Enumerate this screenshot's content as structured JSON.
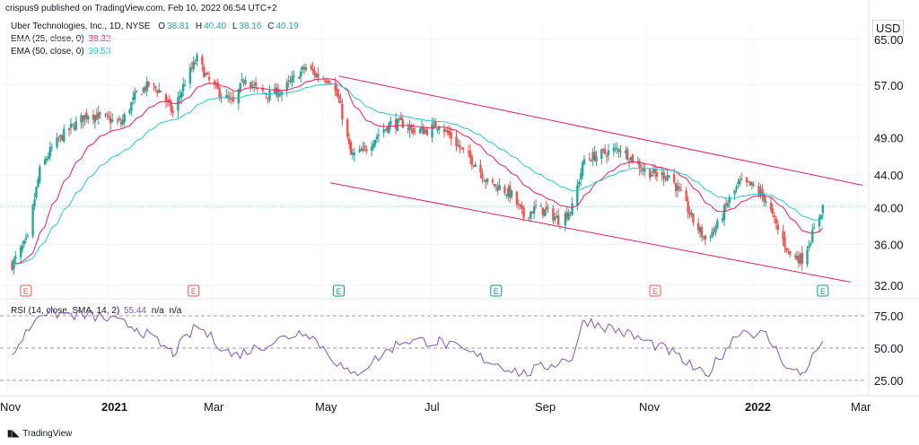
{
  "header": {
    "published": "crispus9 published on TradingView.com, Feb 10, 2022 06:54 UTC+2"
  },
  "legend": {
    "symbol": "Uber Technologies, Inc., 1D, NYSE",
    "o_label": "O",
    "o": "38.81",
    "h_label": "H",
    "h": "40.40",
    "l_label": "L",
    "l": "38.16",
    "c_label": "C",
    "c": "40.19",
    "ema25_label": "EMA (25, close, 0)",
    "ema25": "38.32",
    "ema50_label": "EMA (50, close, 0)",
    "ema50": "39.53"
  },
  "rsi_legend": {
    "label": "RSI (14, close, SMA, 14, 2)",
    "value": "55.44",
    "na1": "n/a",
    "na2": "n/a"
  },
  "currency": "USD",
  "footer": {
    "brand": "TradingView"
  },
  "colors": {
    "up": "#26a69a",
    "down": "#ef5350",
    "ema25": "#e91e63",
    "ema50": "#26c6da",
    "channel": "#e91e63",
    "rsi": "#7e57c2",
    "grid": "#f0f3fa",
    "text": "#131722"
  },
  "chart_data": {
    "type": "candlestick",
    "price_axis": {
      "ticks": [
        65.0,
        57.0,
        49.0,
        44.0,
        40.0,
        36.0,
        32.0
      ],
      "labels": [
        "65.00",
        "57.00",
        "49.00",
        "44.00",
        "40.00",
        "36.00",
        "32.00"
      ],
      "scale": "log"
    },
    "time_axis": {
      "labels": [
        "Nov",
        "2021",
        "Mar",
        "May",
        "Jul",
        "Sep",
        "Nov",
        "2022",
        "Mar"
      ],
      "bold": [
        false,
        true,
        false,
        false,
        false,
        false,
        false,
        true,
        false
      ]
    },
    "rsi_axis": {
      "ticks": [
        75,
        50,
        25
      ],
      "labels": [
        "75.00",
        "50.00",
        "25.00"
      ]
    },
    "earnings_markers": [
      {
        "date": "2020-11-05",
        "label": "E",
        "kind": "miss"
      },
      {
        "date": "2021-02-10",
        "label": "E",
        "kind": "miss"
      },
      {
        "date": "2021-05-05",
        "label": "E",
        "kind": "beat"
      },
      {
        "date": "2021-08-04",
        "label": "E",
        "kind": "beat"
      },
      {
        "date": "2021-11-04",
        "label": "E",
        "kind": "miss"
      },
      {
        "date": "2022-02-09",
        "label": "E",
        "kind": "beat"
      }
    ],
    "close_path": [
      {
        "date": "2020-10-28",
        "close": 34.0
      },
      {
        "date": "2020-11-06",
        "close": 36.5
      },
      {
        "date": "2020-11-13",
        "close": 44.5
      },
      {
        "date": "2020-11-20",
        "close": 47.5
      },
      {
        "date": "2020-11-27",
        "close": 49.5
      },
      {
        "date": "2020-12-04",
        "close": 51.0
      },
      {
        "date": "2020-12-11",
        "close": 52.5
      },
      {
        "date": "2020-12-18",
        "close": 52.0
      },
      {
        "date": "2020-12-30",
        "close": 51.0
      },
      {
        "date": "2021-01-08",
        "close": 55.5
      },
      {
        "date": "2021-01-15",
        "close": 57.0
      },
      {
        "date": "2021-01-22",
        "close": 56.0
      },
      {
        "date": "2021-01-29",
        "close": 52.5
      },
      {
        "date": "2021-02-05",
        "close": 57.5
      },
      {
        "date": "2021-02-12",
        "close": 61.5
      },
      {
        "date": "2021-02-18",
        "close": 58.0
      },
      {
        "date": "2021-02-26",
        "close": 55.5
      },
      {
        "date": "2021-03-05",
        "close": 54.0
      },
      {
        "date": "2021-03-12",
        "close": 58.5
      },
      {
        "date": "2021-03-19",
        "close": 56.0
      },
      {
        "date": "2021-03-26",
        "close": 55.5
      },
      {
        "date": "2021-04-02",
        "close": 56.0
      },
      {
        "date": "2021-04-09",
        "close": 58.0
      },
      {
        "date": "2021-04-16",
        "close": 60.0
      },
      {
        "date": "2021-04-23",
        "close": 58.5
      },
      {
        "date": "2021-04-30",
        "close": 58.0
      },
      {
        "date": "2021-05-05",
        "close": 54.5
      },
      {
        "date": "2021-05-12",
        "close": 46.5
      },
      {
        "date": "2021-05-19",
        "close": 47.0
      },
      {
        "date": "2021-05-28",
        "close": 49.5
      },
      {
        "date": "2021-06-04",
        "close": 51.0
      },
      {
        "date": "2021-06-11",
        "close": 51.0
      },
      {
        "date": "2021-06-18",
        "close": 50.0
      },
      {
        "date": "2021-06-25",
        "close": 50.0
      },
      {
        "date": "2021-07-02",
        "close": 51.0
      },
      {
        "date": "2021-07-09",
        "close": 49.0
      },
      {
        "date": "2021-07-16",
        "close": 47.0
      },
      {
        "date": "2021-07-23",
        "close": 45.5
      },
      {
        "date": "2021-07-30",
        "close": 43.0
      },
      {
        "date": "2021-08-06",
        "close": 42.5
      },
      {
        "date": "2021-08-13",
        "close": 41.5
      },
      {
        "date": "2021-08-20",
        "close": 39.0
      },
      {
        "date": "2021-08-27",
        "close": 40.0
      },
      {
        "date": "2021-09-03",
        "close": 39.5
      },
      {
        "date": "2021-09-10",
        "close": 38.5
      },
      {
        "date": "2021-09-17",
        "close": 40.0
      },
      {
        "date": "2021-09-24",
        "close": 46.0
      },
      {
        "date": "2021-10-01",
        "close": 46.5
      },
      {
        "date": "2021-10-08",
        "close": 47.0
      },
      {
        "date": "2021-10-15",
        "close": 47.5
      },
      {
        "date": "2021-10-22",
        "close": 46.0
      },
      {
        "date": "2021-10-29",
        "close": 44.5
      },
      {
        "date": "2021-11-05",
        "close": 44.0
      },
      {
        "date": "2021-11-12",
        "close": 44.0
      },
      {
        "date": "2021-11-19",
        "close": 41.5
      },
      {
        "date": "2021-11-26",
        "close": 38.5
      },
      {
        "date": "2021-12-03",
        "close": 36.5
      },
      {
        "date": "2021-12-10",
        "close": 38.0
      },
      {
        "date": "2021-12-17",
        "close": 41.0
      },
      {
        "date": "2021-12-23",
        "close": 43.0
      },
      {
        "date": "2021-12-31",
        "close": 42.5
      },
      {
        "date": "2022-01-07",
        "close": 41.0
      },
      {
        "date": "2022-01-14",
        "close": 37.5
      },
      {
        "date": "2022-01-21",
        "close": 35.0
      },
      {
        "date": "2022-01-28",
        "close": 34.5
      },
      {
        "date": "2022-02-04",
        "close": 37.5
      },
      {
        "date": "2022-02-09",
        "close": 40.19
      }
    ],
    "channel_upper": [
      {
        "date": "2021-05-05",
        "price": 58.5
      },
      {
        "date": "2022-03-04",
        "price": 42.7
      }
    ],
    "channel_lower": [
      {
        "date": "2021-04-30",
        "price": 43.0
      },
      {
        "date": "2022-02-25",
        "price": 32.3
      }
    ],
    "rsi_path": [
      {
        "date": "2020-10-28",
        "rsi": 45
      },
      {
        "date": "2020-11-13",
        "rsi": 78
      },
      {
        "date": "2020-12-18",
        "rsi": 74
      },
      {
        "date": "2021-01-08",
        "rsi": 66
      },
      {
        "date": "2021-01-29",
        "rsi": 46
      },
      {
        "date": "2021-02-12",
        "rsi": 67
      },
      {
        "date": "2021-03-05",
        "rsi": 44
      },
      {
        "date": "2021-04-16",
        "rsi": 64
      },
      {
        "date": "2021-05-12",
        "rsi": 28
      },
      {
        "date": "2021-06-11",
        "rsi": 56
      },
      {
        "date": "2021-07-02",
        "rsi": 55
      },
      {
        "date": "2021-08-20",
        "rsi": 30
      },
      {
        "date": "2021-09-17",
        "rsi": 43
      },
      {
        "date": "2021-09-24",
        "rsi": 72
      },
      {
        "date": "2021-10-15",
        "rsi": 63
      },
      {
        "date": "2021-11-12",
        "rsi": 48
      },
      {
        "date": "2021-12-03",
        "rsi": 28
      },
      {
        "date": "2021-12-23",
        "rsi": 64
      },
      {
        "date": "2022-01-07",
        "rsi": 60
      },
      {
        "date": "2022-01-21",
        "rsi": 33
      },
      {
        "date": "2022-01-28",
        "rsi": 30
      },
      {
        "date": "2022-02-09",
        "rsi": 55.44
      }
    ],
    "current_price": 40.19
  }
}
